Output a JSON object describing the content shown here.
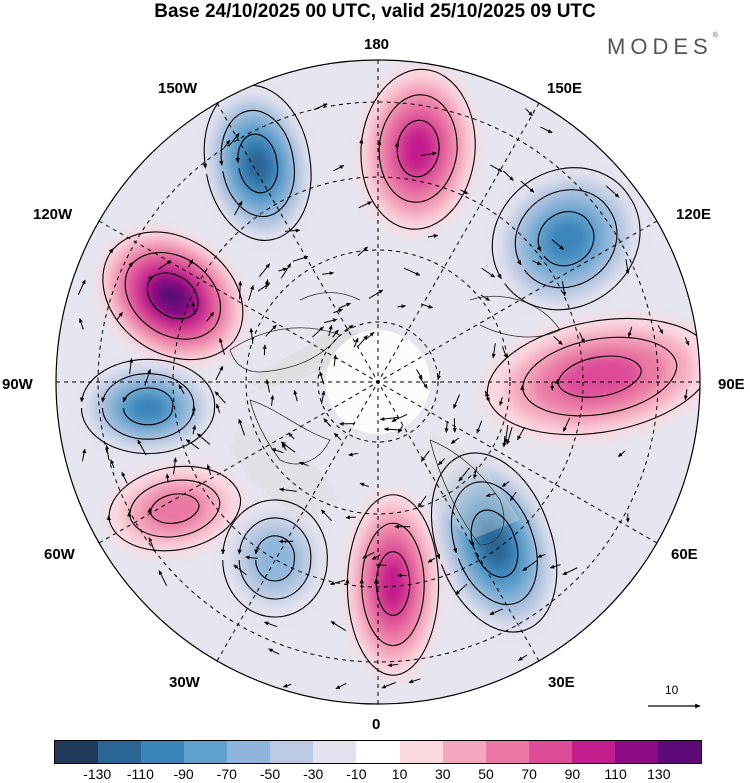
{
  "header": {
    "title": "Base 24/10/2025 00 UTC, valid 25/10/2025 09 UTC",
    "brand": "MODES",
    "brand_mark": "®"
  },
  "map": {
    "longitude_labels": {
      "n180": "180",
      "w150": "150W",
      "e150": "150E",
      "w120": "120W",
      "e120": "120E",
      "w90": "90W",
      "e90": "90E",
      "w60": "60W",
      "e60": "60E",
      "w30": "30W",
      "e30": "30E",
      "s0": "0"
    },
    "anomaly_centers": [
      {
        "sign": "negative",
        "level": "-110",
        "near": "150W"
      },
      {
        "sign": "positive",
        "level": "90",
        "near": "180"
      },
      {
        "sign": "negative",
        "level": "-90",
        "near": "120E-150E"
      },
      {
        "sign": "positive",
        "level": "130",
        "near": "120W"
      },
      {
        "sign": "negative",
        "level": "-90",
        "near": "90W"
      },
      {
        "sign": "positive",
        "level": "70",
        "near": "90E"
      },
      {
        "sign": "negative",
        "level": "-110",
        "near": "30E-60E"
      },
      {
        "sign": "positive",
        "level": "90",
        "near": "0"
      },
      {
        "sign": "positive",
        "level": "50",
        "near": "60W"
      },
      {
        "sign": "negative",
        "level": "-50",
        "near": "30W-60W"
      }
    ],
    "reference_vector": "10"
  },
  "colorbar": {
    "colors": [
      "#1f3a5c",
      "#2b6594",
      "#3c85bb",
      "#5fa0cc",
      "#8fb6da",
      "#bcc9e2",
      "#e2e2ee",
      "#ffffff",
      "#fbd7de",
      "#f4a7bc",
      "#ea78a4",
      "#dd4c97",
      "#c41e8c",
      "#8e0b86",
      "#5c0a78"
    ],
    "ticks": [
      "-130",
      "-110",
      "-90",
      "-70",
      "-50",
      "-30",
      "-10",
      "10",
      "30",
      "50",
      "70",
      "90",
      "110",
      "130"
    ]
  }
}
